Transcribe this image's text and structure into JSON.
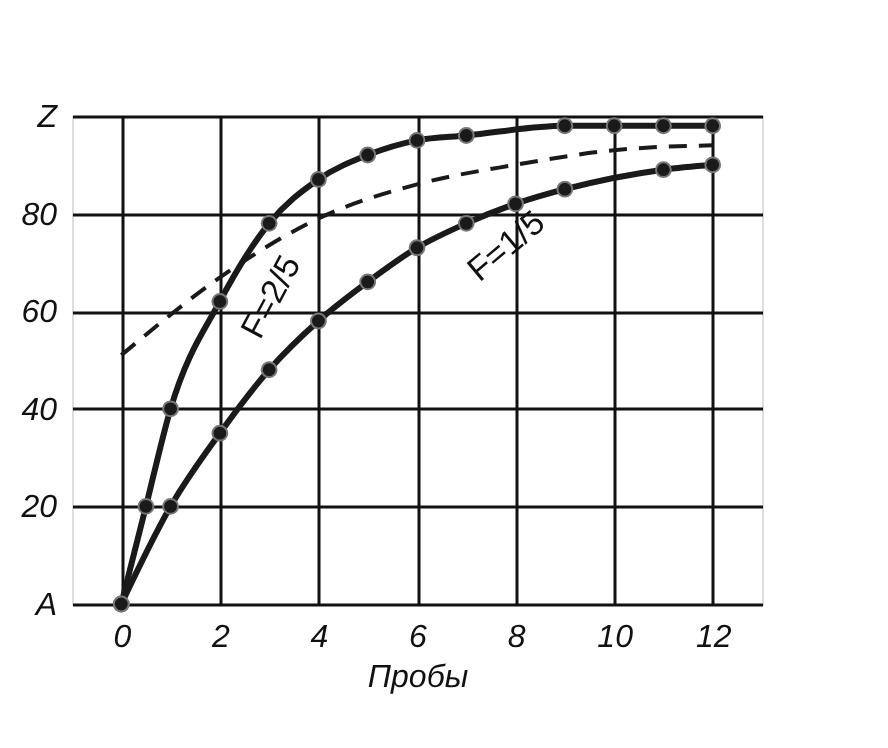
{
  "chart_data": {
    "type": "line",
    "xlabel": "Пробы",
    "xlim": [
      -1,
      13
    ],
    "xticks": [
      0,
      2,
      4,
      6,
      8,
      10,
      12
    ],
    "ylim": [
      0,
      100
    ],
    "yticks": [
      {
        "value": 0,
        "label": "A"
      },
      20,
      40,
      60,
      80,
      {
        "value": 100,
        "label": "Z"
      }
    ],
    "grid": true,
    "legend": false,
    "series": [
      {
        "name": "F=2/5",
        "color": "#1a1a1a",
        "marker": "circle",
        "line_style": "solid",
        "x": [
          0,
          0.5,
          1,
          2,
          3,
          4,
          5,
          6,
          7,
          9,
          10,
          11,
          12
        ],
        "values": [
          0,
          20,
          40,
          62,
          78,
          87,
          92,
          95,
          96,
          98,
          98,
          98,
          98
        ]
      },
      {
        "name": "F=1/5",
        "color": "#1a1a1a",
        "marker": "circle",
        "line_style": "solid",
        "x": [
          0,
          1,
          2,
          3,
          4,
          5,
          6,
          7,
          8,
          9,
          11,
          12
        ],
        "values": [
          0,
          20,
          35,
          48,
          58,
          66,
          73,
          78,
          82,
          85,
          89,
          90
        ]
      },
      {
        "color": "#1a1a1a",
        "marker": "none",
        "line_style": "dashed",
        "x": [
          0,
          2.3,
          4,
          6,
          8,
          10,
          12
        ],
        "values": [
          51,
          69,
          79,
          86,
          90,
          93,
          94
        ]
      }
    ]
  }
}
